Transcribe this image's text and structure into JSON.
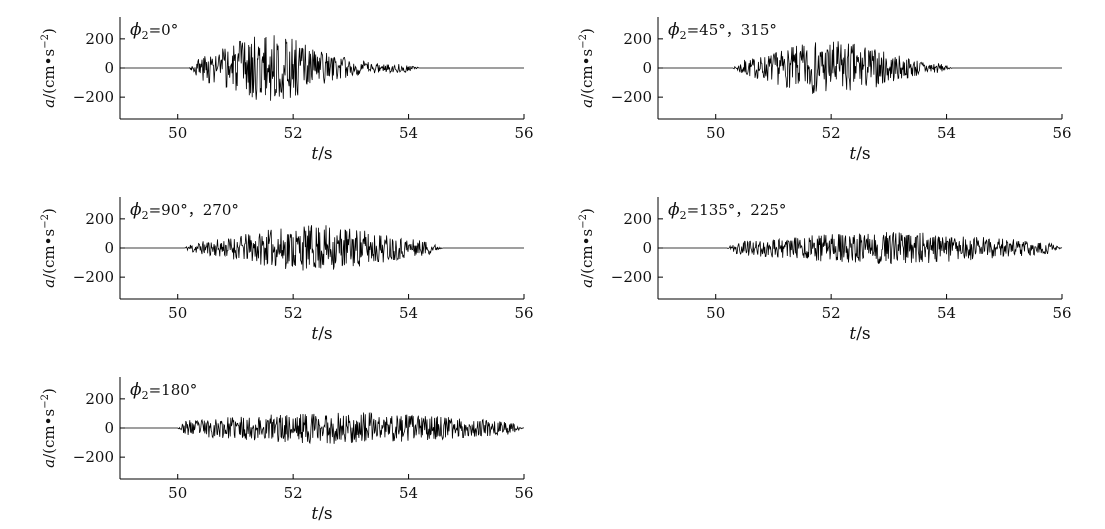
{
  "chart_data": [
    {
      "type": "line",
      "annotation": {
        "symbol": "ϕ",
        "subscript": "2",
        "text": "=0°"
      },
      "xlabel": {
        "var": "t",
        "unit": "/s"
      },
      "ylabel": {
        "var": "a",
        "unit": "/(cm•s",
        "exp": "−2",
        "close": ")"
      },
      "xlim": [
        49,
        56
      ],
      "ylim": [
        -350,
        350
      ],
      "xticks": [
        50,
        52,
        54,
        56
      ],
      "yticks": [
        200,
        0,
        -200
      ],
      "ytick_labels": [
        "200",
        "0",
        "−200"
      ],
      "signal": {
        "onset": 50.2,
        "end": 54.2,
        "peak_time": 51.6,
        "peak_amp": 230,
        "spread": 0.75,
        "seed": 3
      }
    },
    {
      "type": "line",
      "annotation": {
        "symbol": "ϕ",
        "subscript": "2",
        "text": "=45°，315°"
      },
      "xlabel": {
        "var": "t",
        "unit": "/s"
      },
      "ylabel": {
        "var": "a",
        "unit": "/(cm•s",
        "exp": "−2",
        "close": ")"
      },
      "xlim": [
        49,
        56
      ],
      "ylim": [
        -350,
        350
      ],
      "xticks": [
        50,
        52,
        54,
        56
      ],
      "yticks": [
        200,
        0,
        -200
      ],
      "ytick_labels": [
        "200",
        "0",
        "−200"
      ],
      "signal": {
        "onset": 50.3,
        "end": 54.1,
        "peak_time": 52.0,
        "peak_amp": 190,
        "spread": 0.85,
        "seed": 7
      }
    },
    {
      "type": "line",
      "annotation": {
        "symbol": "ϕ",
        "subscript": "2",
        "text": "=90°，270°"
      },
      "xlabel": {
        "var": "t",
        "unit": "/s"
      },
      "ylabel": {
        "var": "a",
        "unit": "/(cm•s",
        "exp": "−2",
        "close": ")"
      },
      "xlim": [
        49,
        56
      ],
      "ylim": [
        -350,
        350
      ],
      "xticks": [
        50,
        52,
        54,
        56
      ],
      "yticks": [
        200,
        0,
        -200
      ],
      "ytick_labels": [
        "200",
        "0",
        "−200"
      ],
      "signal": {
        "onset": 50.1,
        "end": 54.6,
        "peak_time": 52.4,
        "peak_amp": 160,
        "spread": 1.1,
        "seed": 11
      }
    },
    {
      "type": "line",
      "annotation": {
        "symbol": "ϕ",
        "subscript": "2",
        "text": "=135°，225°"
      },
      "xlabel": {
        "var": "t",
        "unit": "/s"
      },
      "ylabel": {
        "var": "a",
        "unit": "/(cm•s",
        "exp": "−2",
        "close": ")"
      },
      "xlim": [
        49,
        56
      ],
      "ylim": [
        -350,
        350
      ],
      "xticks": [
        50,
        52,
        54,
        56
      ],
      "yticks": [
        200,
        0,
        -200
      ],
      "ytick_labels": [
        "200",
        "0",
        "−200"
      ],
      "signal": {
        "onset": 50.2,
        "end": 56.0,
        "peak_time": 53.0,
        "peak_amp": 110,
        "spread": 1.8,
        "seed": 19
      }
    },
    {
      "type": "line",
      "annotation": {
        "symbol": "ϕ",
        "subscript": "2",
        "text": "=180°"
      },
      "xlabel": {
        "var": "t",
        "unit": "/s"
      },
      "ylabel": {
        "var": "a",
        "unit": "/(cm•s",
        "exp": "−2",
        "close": ")"
      },
      "xlim": [
        49,
        56
      ],
      "ylim": [
        -350,
        350
      ],
      "xticks": [
        50,
        52,
        54,
        56
      ],
      "yticks": [
        200,
        0,
        -200
      ],
      "ytick_labels": [
        "200",
        "0",
        "−200"
      ],
      "signal": {
        "onset": 50.0,
        "end": 56.0,
        "peak_time": 52.8,
        "peak_amp": 110,
        "spread": 2.0,
        "seed": 23
      }
    }
  ]
}
